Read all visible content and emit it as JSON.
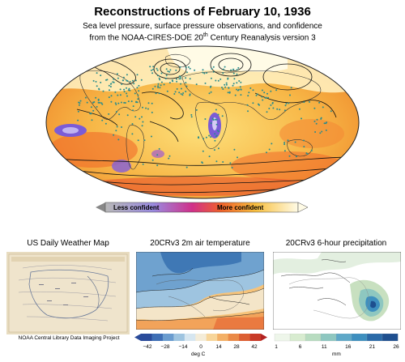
{
  "header": {
    "title": "Reconstructions of February 10, 1936",
    "subtitle_line1": "Sea level pressure, surface pressure observations, and confidence",
    "subtitle_line2_pre": "from the NOAA-CIRES-DOE 20",
    "subtitle_line2_sup": "th",
    "subtitle_line2_post": " Century Reanalysis version 3"
  },
  "confidence_bar": {
    "less_label": "Less confident",
    "more_label": "More confident"
  },
  "panels": {
    "weather_map": {
      "title": "US Daily Weather Map",
      "credit": "NOAA Central Library Data Imaging Project"
    },
    "temperature": {
      "title": "20CRv3 2m air temperature",
      "ticks": [
        "−42",
        "−28",
        "−14",
        "0",
        "14",
        "28",
        "42"
      ],
      "unit": "deg C"
    },
    "precipitation": {
      "title": "20CRv3 6-hour precipitation",
      "ticks": [
        "1",
        "6",
        "11",
        "16",
        "21",
        "26"
      ],
      "unit": "mm"
    }
  },
  "colors": {
    "confidence_low": "#6a5acd",
    "confidence_high": "#fff8dc",
    "observation_dot": "#2a8c8c"
  }
}
